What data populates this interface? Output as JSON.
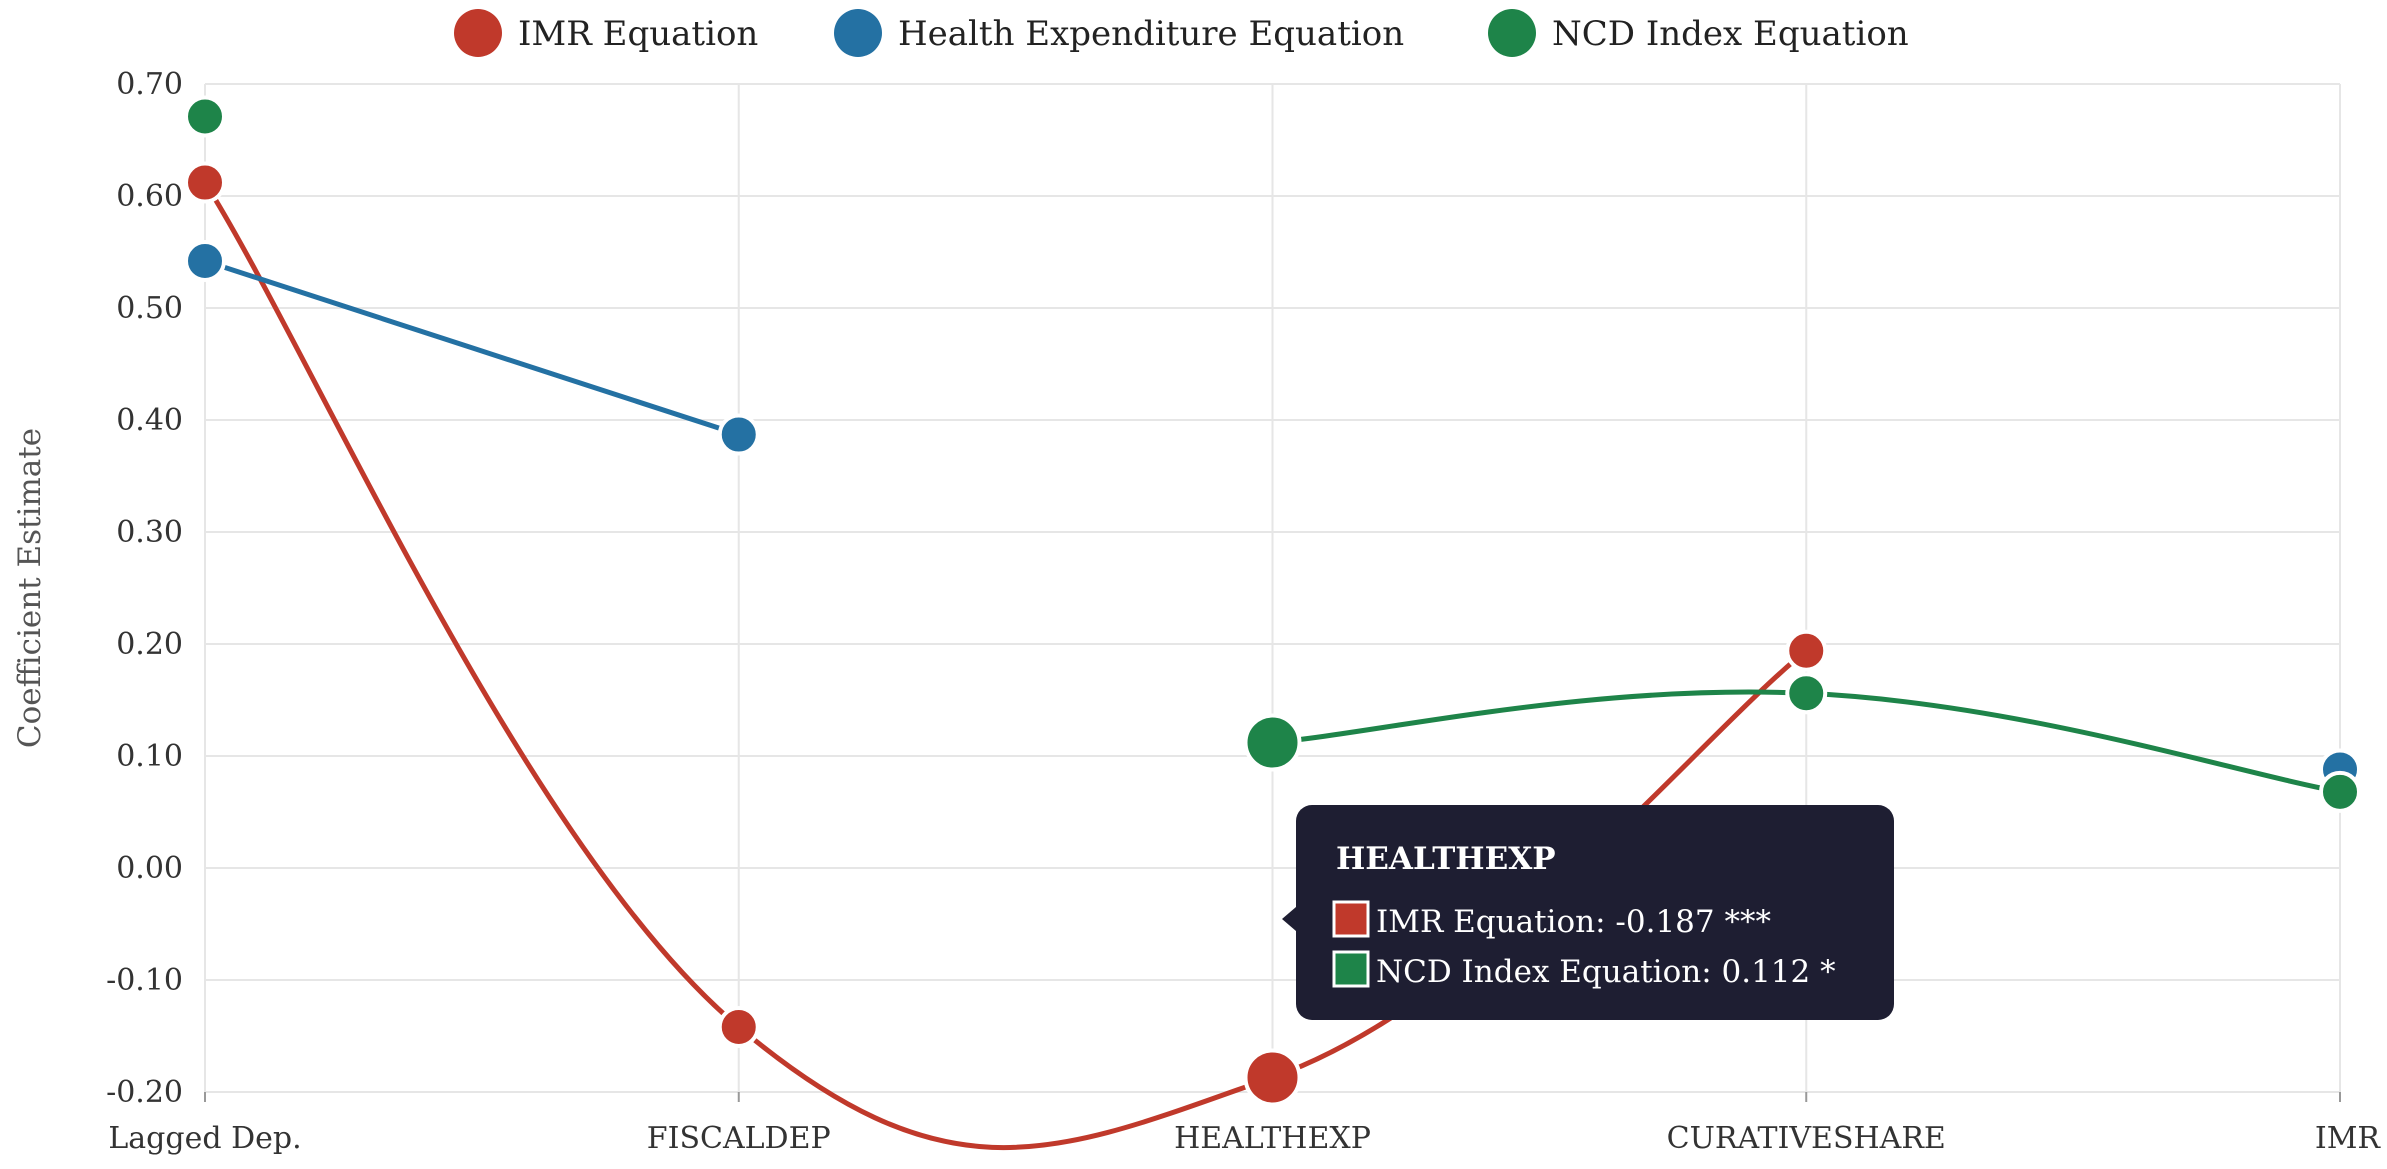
{
  "chart_data": {
    "type": "line",
    "categories": [
      "Lagged Dep.",
      "FISCALDEP",
      "HEALTHEXP",
      "CURATIVESHARE",
      "IMR"
    ],
    "ylabel": "Coefficient Estimate",
    "xlabel": "",
    "title": "",
    "ylim": [
      -0.2,
      0.7
    ],
    "yticks": [
      -0.2,
      -0.1,
      0.0,
      0.1,
      0.2,
      0.3,
      0.4,
      0.5,
      0.6,
      0.7
    ],
    "grid": true,
    "legend_position": "top-center",
    "series": [
      {
        "name": "IMR Equation",
        "color": "#c0392b",
        "values": [
          0.612,
          -0.142,
          -0.187,
          0.194,
          null
        ]
      },
      {
        "name": "Health Expenditure Equation",
        "color": "#2471a3",
        "values": [
          0.542,
          0.387,
          null,
          null,
          0.088
        ]
      },
      {
        "name": "NCD Index Equation",
        "color": "#1e8449",
        "values": [
          0.671,
          null,
          0.112,
          0.156,
          0.068
        ]
      }
    ],
    "tooltip": {
      "title": "HEALTHEXP",
      "category_index": 2,
      "entries": [
        {
          "series_index": 0,
          "text": "IMR Equation: -0.187 ***"
        },
        {
          "series_index": 2,
          "text": "NCD Index Equation: 0.112 *"
        }
      ]
    }
  }
}
